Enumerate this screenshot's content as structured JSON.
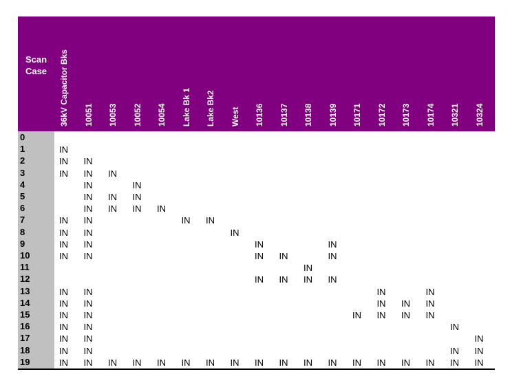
{
  "table": {
    "case_title_line1": "Scan",
    "case_title_line2": "Case",
    "columns": [
      "36kV Capacitor Bks",
      "10051",
      "10053",
      "10052",
      "10054",
      "Lake Bk 1",
      "Lake Bk2",
      "West",
      "10136",
      "10137",
      "10138",
      "10139",
      "10171",
      "10172",
      "10173",
      "10174",
      "10321",
      "10324"
    ],
    "cell_value": "IN",
    "rows": [
      {
        "case": "0",
        "in": []
      },
      {
        "case": "1",
        "in": [
          0
        ]
      },
      {
        "case": "2",
        "in": [
          0,
          1
        ]
      },
      {
        "case": "3",
        "in": [
          0,
          1,
          2
        ]
      },
      {
        "case": "4",
        "in": [
          1,
          3
        ]
      },
      {
        "case": "5",
        "in": [
          1,
          2,
          3
        ]
      },
      {
        "case": "6",
        "in": [
          1,
          2,
          3,
          4
        ]
      },
      {
        "case": "7",
        "in": [
          0,
          1,
          5,
          6
        ]
      },
      {
        "case": "8",
        "in": [
          0,
          1,
          7
        ]
      },
      {
        "case": "9",
        "in": [
          0,
          1,
          8,
          11
        ]
      },
      {
        "case": "10",
        "in": [
          0,
          1,
          8,
          9,
          11
        ]
      },
      {
        "case": "11",
        "in": [
          10
        ]
      },
      {
        "case": "12",
        "in": [
          8,
          9,
          10,
          11
        ]
      },
      {
        "case": "13",
        "in": [
          0,
          1,
          13,
          15
        ]
      },
      {
        "case": "14",
        "in": [
          0,
          1,
          13,
          14,
          15
        ]
      },
      {
        "case": "15",
        "in": [
          0,
          1,
          12,
          13,
          14,
          15
        ]
      },
      {
        "case": "16",
        "in": [
          0,
          1,
          16
        ]
      },
      {
        "case": "17",
        "in": [
          0,
          1,
          17
        ]
      },
      {
        "case": "18",
        "in": [
          0,
          1,
          16,
          17
        ]
      },
      {
        "case": "19",
        "in": [
          0,
          1,
          2,
          3,
          4,
          5,
          6,
          7,
          8,
          9,
          10,
          11,
          12,
          13,
          14,
          15,
          16,
          17
        ]
      }
    ]
  }
}
